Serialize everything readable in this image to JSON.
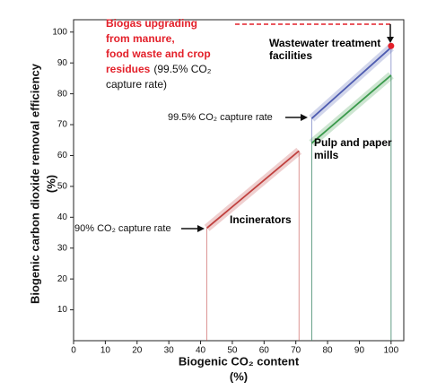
{
  "chart_data": {
    "type": "line",
    "xlabel": [
      "Biogenic CO₂ content",
      "(%)"
    ],
    "ylabel": [
      "Biogenic carbon dioxide removal efficiency",
      "(%)"
    ],
    "xlim": [
      0,
      104
    ],
    "ylim": [
      0,
      104
    ],
    "xticks": [
      0,
      10,
      20,
      30,
      40,
      50,
      60,
      70,
      80,
      90,
      100
    ],
    "yticks": [
      10,
      20,
      30,
      40,
      50,
      60,
      70,
      80,
      90,
      100
    ],
    "series": [
      {
        "name": "Incinerators",
        "color": "#c0413f",
        "x": [
          42,
          71
        ],
        "values": [
          36.5,
          61.5
        ]
      },
      {
        "name": "Wastewater treatment facilities",
        "color": "#4d5bb0",
        "x": [
          75,
          100
        ],
        "values": [
          72,
          95
        ]
      },
      {
        "name": "Pulp and paper mills",
        "color": "#3b9a4c",
        "x": [
          75,
          100
        ],
        "values": [
          64,
          86
        ]
      }
    ],
    "point": {
      "x": 100,
      "y": 95.5,
      "color": "#e3202a"
    },
    "annotations": [
      "Biogas upgrading",
      "from manure,",
      "food waste and crop",
      "residues",
      "(99.5% CO₂",
      "capture rate)",
      "99.5% CO₂ capture rate",
      "90% CO₂ capture rate"
    ]
  }
}
